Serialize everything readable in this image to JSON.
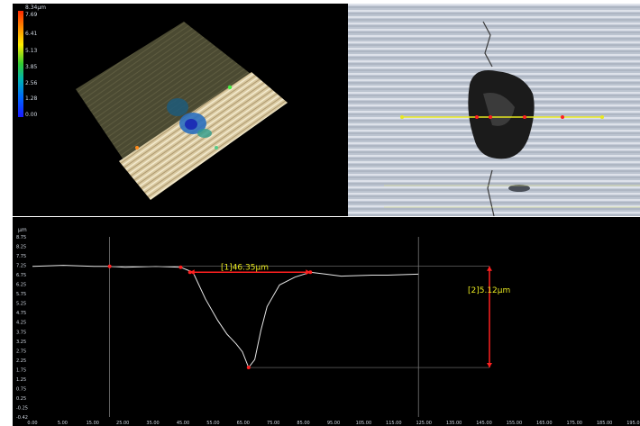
{
  "height_legend": {
    "unit_top": "8.34µm",
    "ticks": [
      "7.69",
      "6.41",
      "5.13",
      "3.85",
      "2.56",
      "1.28",
      "0.00"
    ]
  },
  "colors": {
    "profile_line": "#e8e8e8",
    "measure": "#ff2020",
    "measure_text": "#e8e820",
    "scan_line": "#e8e820"
  },
  "profile": {
    "unit": "µm",
    "y_ticks": [
      "8.75",
      "8.25",
      "7.75",
      "7.25",
      "6.75",
      "6.25",
      "5.75",
      "5.25",
      "4.75",
      "4.25",
      "3.75",
      "3.25",
      "2.75",
      "2.25",
      "1.75",
      "1.25",
      "0.75",
      "0.25",
      "-0.25",
      "-0.42"
    ],
    "x_ticks": [
      "0.00",
      "5.00",
      "15.00",
      "25.00",
      "35.00",
      "45.00",
      "55.00",
      "65.00",
      "75.00",
      "85.00",
      "95.00",
      "105.00",
      "115.00",
      "125.00",
      "135.00",
      "145.00",
      "155.00",
      "165.00",
      "175.00",
      "185.00",
      "195.00"
    ],
    "width_measure": "[1]46.35µm",
    "depth_measure": "[2]5.12µm"
  },
  "chart_data": {
    "type": "line",
    "title": "",
    "xlabel": "",
    "ylabel": "µm",
    "xlim": [
      0,
      195
    ],
    "ylim": [
      -0.42,
      8.75
    ],
    "grid": false,
    "series": [
      {
        "x": [
          0,
          10,
          20,
          25,
          30,
          40,
          48,
          52,
          56,
          60,
          63,
          66,
          68,
          70,
          72,
          74,
          76,
          80,
          85,
          90,
          95,
          100,
          110,
          115,
          125
        ],
        "y": [
          7.25,
          7.3,
          7.25,
          7.25,
          7.2,
          7.25,
          7.2,
          6.95,
          5.6,
          4.5,
          3.8,
          3.3,
          2.9,
          2.1,
          2.5,
          4.0,
          5.2,
          6.3,
          6.7,
          6.95,
          6.85,
          6.75,
          6.8,
          6.8,
          6.85
        ]
      }
    ]
  }
}
